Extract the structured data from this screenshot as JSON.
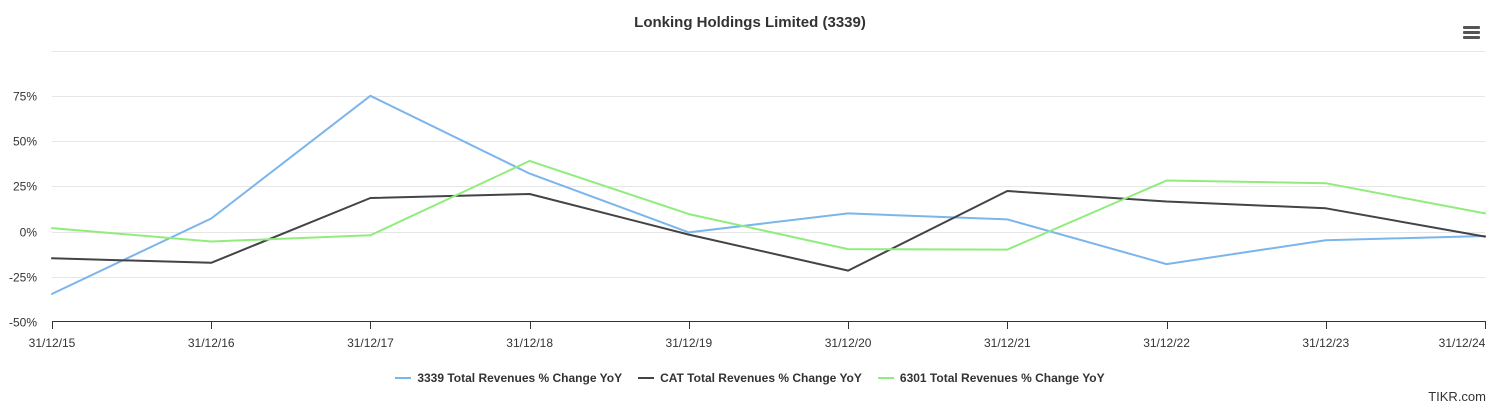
{
  "chart_data": {
    "type": "line",
    "title": "Lonking Holdings Limited (3339)",
    "categories": [
      "31/12/15",
      "31/12/16",
      "31/12/17",
      "31/12/18",
      "31/12/19",
      "31/12/20",
      "31/12/21",
      "31/12/22",
      "31/12/23",
      "31/12/24"
    ],
    "y_ticks": [
      75,
      50,
      25,
      0,
      -25,
      -50
    ],
    "y_tick_labels": [
      "75%",
      "50%",
      "25%",
      "0%",
      "-25%",
      "-50%"
    ],
    "ylim": [
      -50,
      100
    ],
    "xlabel": "",
    "ylabel": "",
    "grid": true,
    "legend_position": "bottom-center",
    "series": [
      {
        "name": "3339 Total Revenues % Change YoY",
        "color": "#7cb5ec",
        "values": [
          -34.5,
          7.2,
          75.0,
          32.0,
          -0.5,
          10.0,
          6.7,
          -18.0,
          -4.8,
          -2.5
        ]
      },
      {
        "name": "CAT Total Revenues % Change YoY",
        "color": "#434348",
        "values": [
          -14.8,
          -17.3,
          18.5,
          20.7,
          -1.7,
          -21.6,
          22.4,
          16.6,
          12.8,
          -2.8
        ]
      },
      {
        "name": "6301 Total Revenues % Change YoY",
        "color": "#90ed7d",
        "values": [
          1.9,
          -5.5,
          -2.1,
          39.0,
          9.6,
          -9.7,
          -10.0,
          28.2,
          26.7,
          10.0
        ]
      }
    ]
  },
  "credit": "TIKR.com"
}
